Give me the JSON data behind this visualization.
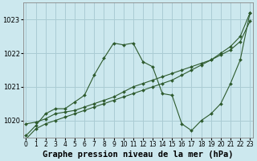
{
  "title": "Graphe pression niveau de la mer (hPa)",
  "background_color": "#cce8ee",
  "grid_color": "#aaccd4",
  "line_color": "#2d5a2d",
  "hours": [
    0,
    1,
    2,
    3,
    4,
    5,
    6,
    7,
    8,
    9,
    10,
    11,
    12,
    13,
    14,
    15,
    16,
    17,
    18,
    19,
    20,
    21,
    22,
    23
  ],
  "line1": [
    1019.45,
    1019.75,
    1019.9,
    1020.0,
    1020.1,
    1020.2,
    1020.3,
    1020.4,
    1020.5,
    1020.6,
    1020.7,
    1020.8,
    1020.9,
    1021.0,
    1021.1,
    1021.2,
    1021.35,
    1021.5,
    1021.65,
    1021.8,
    1022.0,
    1022.2,
    1022.5,
    1023.2
  ],
  "line2": [
    1019.9,
    1019.95,
    1020.05,
    1020.2,
    1020.25,
    1020.3,
    1020.4,
    1020.5,
    1020.6,
    1020.7,
    1020.85,
    1021.0,
    1021.1,
    1021.2,
    1021.3,
    1021.4,
    1021.5,
    1021.6,
    1021.7,
    1021.8,
    1021.95,
    1022.1,
    1022.35,
    1022.95
  ],
  "line3": [
    1019.55,
    1019.85,
    1020.2,
    1020.35,
    1020.35,
    1020.55,
    1020.75,
    1021.35,
    1021.85,
    1022.3,
    1022.25,
    1022.3,
    1021.75,
    1021.6,
    1020.8,
    1020.75,
    1019.9,
    1019.7,
    1020.0,
    1020.2,
    1020.5,
    1021.1,
    1021.8,
    1023.2
  ],
  "ylim": [
    1019.5,
    1023.5
  ],
  "yticks": [
    1020,
    1021,
    1022,
    1023
  ],
  "title_fontsize": 7.5,
  "tick_fontsize": 6.0
}
